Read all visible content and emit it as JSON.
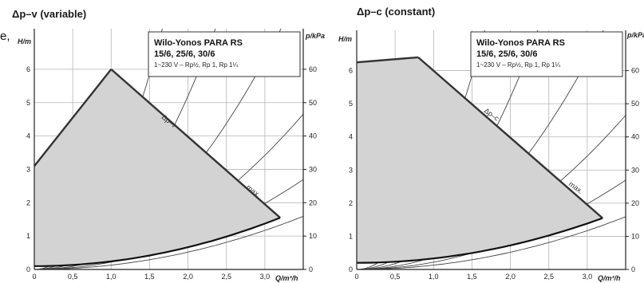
{
  "page_fragment": "e,",
  "chart_data": [
    {
      "type": "line",
      "title": "Δp–v (variable)",
      "xlabel": "Q/m³/h",
      "ylabel": "H/m",
      "y2label": "p/kPa",
      "xlim": [
        0,
        3.5
      ],
      "ylim": [
        0,
        7
      ],
      "y2lim": [
        0,
        70
      ],
      "xticks": [
        "0",
        "0,5",
        "1,0",
        "1,5",
        "2,0",
        "2,5",
        "3,0"
      ],
      "yticks": [
        "0",
        "1",
        "2",
        "3",
        "4",
        "5",
        "6"
      ],
      "y2ticks": [
        "0",
        "10",
        "20",
        "30",
        "40",
        "50",
        "60"
      ],
      "grid": true,
      "curve_labels": {
        "control": "Δp–v",
        "max": "max."
      },
      "info_box": {
        "title_line1": "Wilo-Yonos PARA RS",
        "title_line2": "15/6, 25/6, 30/6",
        "subtitle": "1~230 V – Rp½, Rp 1, Rp 1¼"
      },
      "series": [
        {
          "name": "Δp–v",
          "points": [
            [
              0,
              3.1
            ],
            [
              1.0,
              6.0
            ]
          ]
        },
        {
          "name": "max.",
          "points": [
            [
              1.0,
              6.0
            ],
            [
              3.2,
              1.55
            ]
          ]
        },
        {
          "name": "",
          "points": [
            [
              0,
              0.1
            ],
            [
              0.5,
              0.18
            ],
            [
              1.0,
              0.3
            ],
            [
              1.5,
              0.47
            ],
            [
              2.0,
              0.68
            ],
            [
              2.5,
              0.96
            ],
            [
              3.2,
              1.55
            ]
          ]
        }
      ],
      "system_curve_k": [
        2.6,
        1.3,
        0.7,
        0.38,
        0.22,
        0.13
      ]
    },
    {
      "type": "line",
      "title": "Δp–c (constant)",
      "xlabel": "Q/m³/h",
      "ylabel": "H/m",
      "y2label": "p/kPa",
      "xlim": [
        0,
        3.5
      ],
      "ylim": [
        0,
        7
      ],
      "y2lim": [
        0,
        70
      ],
      "xticks": [
        "0",
        "0,5",
        "1,0",
        "1,5",
        "2,0",
        "2,5",
        "3,0"
      ],
      "yticks": [
        "0",
        "1",
        "2",
        "3",
        "4",
        "5",
        "6"
      ],
      "y2ticks": [
        "0",
        "10",
        "20",
        "30",
        "40",
        "50",
        "60"
      ],
      "grid": true,
      "curve_labels": {
        "control": "Δp–c",
        "max": "max."
      },
      "info_box": {
        "title_line1": "Wilo-Yonos PARA RS",
        "title_line2": "15/6, 25/6, 30/6",
        "subtitle": "1~230 V – Rp½, Rp 1, Rp 1¼"
      },
      "series": [
        {
          "name": "Δp–c",
          "points": [
            [
              0,
              6.25
            ],
            [
              0.8,
              6.4
            ]
          ]
        },
        {
          "name": "max.",
          "points": [
            [
              0.8,
              6.4
            ],
            [
              3.2,
              1.55
            ]
          ]
        },
        {
          "name": "",
          "points": [
            [
              0,
              0.2
            ],
            [
              0.5,
              0.28
            ],
            [
              1.0,
              0.4
            ],
            [
              1.5,
              0.56
            ],
            [
              2.0,
              0.77
            ],
            [
              2.5,
              1.04
            ],
            [
              3.2,
              1.55
            ]
          ]
        }
      ],
      "system_curve_k": [
        2.6,
        1.3,
        0.7,
        0.38,
        0.22,
        0.13
      ]
    }
  ]
}
